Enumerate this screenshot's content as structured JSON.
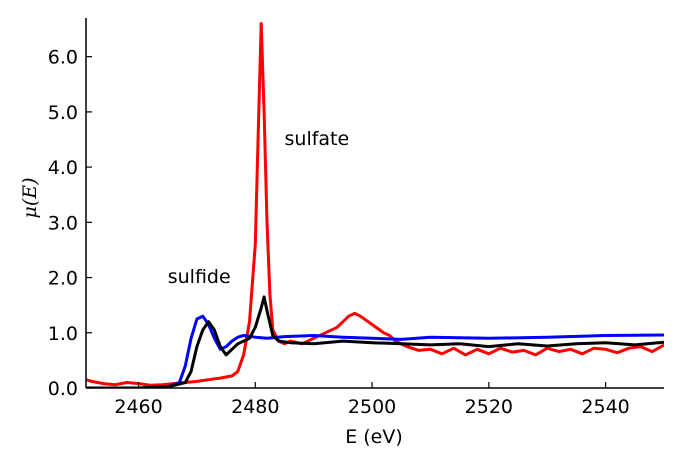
{
  "chart_data": {
    "type": "line",
    "xlabel": "E (eV)",
    "ylabel": "μ(E)",
    "xlim": [
      2451,
      2550
    ],
    "ylim": [
      0,
      6.7
    ],
    "x_ticks": [
      2460,
      2480,
      2500,
      2520,
      2540
    ],
    "x_tick_labels": [
      "2460",
      "2480",
      "2500",
      "2520",
      "2540"
    ],
    "y_ticks": [
      0,
      1,
      2,
      3,
      4,
      5,
      6
    ],
    "y_tick_labels": [
      "0.0",
      "1.0",
      "2.0",
      "3.0",
      "4.0",
      "5.0",
      "6.0"
    ],
    "grid": false,
    "legend": "none",
    "annotations": [
      {
        "text": "sulfate",
        "x": 2485,
        "y": 4.4
      },
      {
        "text": "sulfide",
        "x": 2465,
        "y": 1.9
      }
    ],
    "series": [
      {
        "color": "#ff0000",
        "x": [
          2451,
          2452,
          2454,
          2456,
          2458,
          2460,
          2462,
          2464,
          2466,
          2468,
          2470,
          2472,
          2474,
          2476,
          2477,
          2478,
          2479,
          2480,
          2480.5,
          2481,
          2481.5,
          2482,
          2482.5,
          2483,
          2484,
          2485,
          2486,
          2488,
          2490,
          2492,
          2494,
          2496,
          2497,
          2498,
          2500,
          2502,
          2503,
          2504,
          2506,
          2508,
          2510,
          2512,
          2514,
          2516,
          2518,
          2520,
          2522,
          2524,
          2526,
          2528,
          2530,
          2532,
          2534,
          2536,
          2538,
          2540,
          2542,
          2544,
          2546,
          2548,
          2550
        ],
        "y": [
          0.15,
          0.12,
          0.08,
          0.06,
          0.1,
          0.08,
          0.05,
          0.06,
          0.08,
          0.1,
          0.12,
          0.15,
          0.18,
          0.22,
          0.3,
          0.6,
          1.2,
          2.6,
          4.6,
          6.6,
          5.0,
          3.0,
          1.7,
          1.05,
          0.85,
          0.8,
          0.85,
          0.8,
          0.9,
          1.0,
          1.1,
          1.3,
          1.35,
          1.3,
          1.15,
          1.0,
          0.95,
          0.85,
          0.75,
          0.68,
          0.7,
          0.62,
          0.72,
          0.6,
          0.7,
          0.62,
          0.72,
          0.65,
          0.68,
          0.6,
          0.72,
          0.66,
          0.7,
          0.62,
          0.72,
          0.7,
          0.64,
          0.72,
          0.75,
          0.66,
          0.78
        ]
      },
      {
        "color": "#0000ff",
        "x": [
          2451,
          2455,
          2460,
          2465,
          2467,
          2468,
          2469,
          2470,
          2471,
          2472,
          2473,
          2474,
          2475,
          2476,
          2477,
          2478,
          2480,
          2482,
          2485,
          2490,
          2495,
          2500,
          2505,
          2510,
          2520,
          2530,
          2540,
          2550
        ],
        "y": [
          0.0,
          0.0,
          0.0,
          0.02,
          0.1,
          0.4,
          0.9,
          1.25,
          1.3,
          1.15,
          0.9,
          0.7,
          0.75,
          0.85,
          0.92,
          0.95,
          0.92,
          0.9,
          0.93,
          0.95,
          0.92,
          0.9,
          0.88,
          0.92,
          0.9,
          0.92,
          0.95,
          0.96
        ]
      },
      {
        "color": "#000000",
        "x": [
          2451,
          2455,
          2460,
          2465,
          2468,
          2469,
          2470,
          2471,
          2472,
          2473,
          2474,
          2475,
          2476,
          2477,
          2478,
          2479,
          2480,
          2481,
          2481.5,
          2482,
          2483,
          2484,
          2486,
          2490,
          2495,
          2500,
          2505,
          2510,
          2515,
          2520,
          2525,
          2530,
          2535,
          2540,
          2545,
          2550
        ],
        "y": [
          0.0,
          0.0,
          0.0,
          0.02,
          0.1,
          0.3,
          0.75,
          1.05,
          1.2,
          1.05,
          0.75,
          0.6,
          0.7,
          0.8,
          0.85,
          0.9,
          1.1,
          1.45,
          1.65,
          1.4,
          0.95,
          0.85,
          0.82,
          0.8,
          0.85,
          0.82,
          0.8,
          0.78,
          0.8,
          0.75,
          0.8,
          0.76,
          0.8,
          0.82,
          0.78,
          0.83
        ]
      }
    ]
  }
}
